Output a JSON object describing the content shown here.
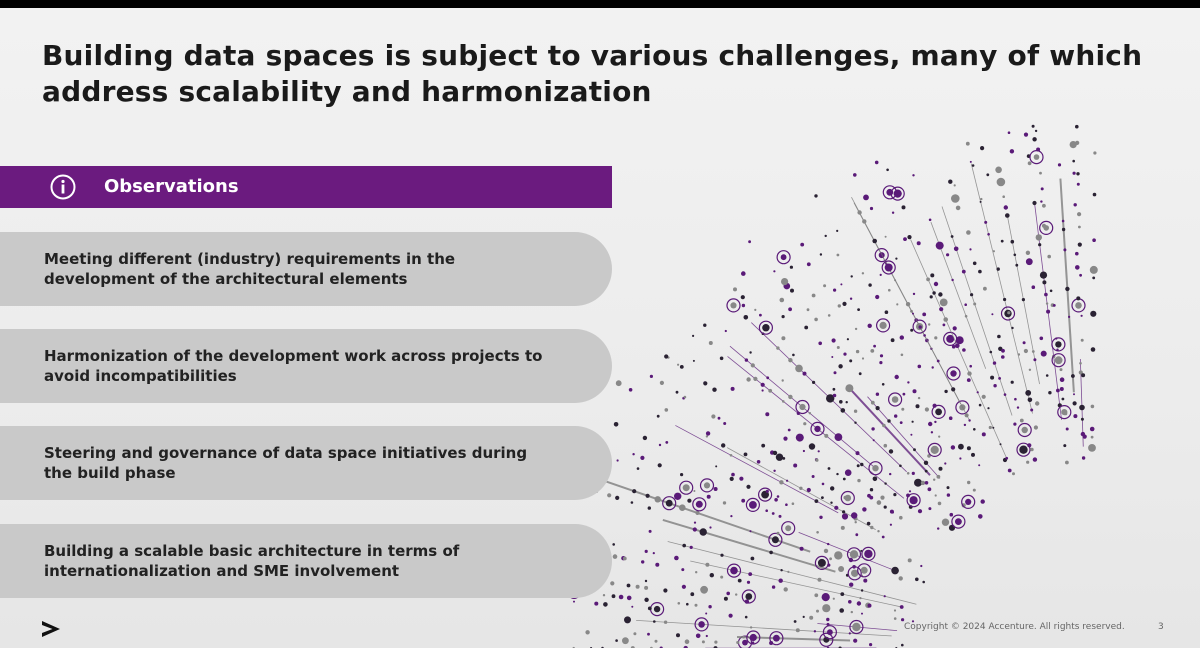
{
  "slide": {
    "title": "Building data spaces is subject to various challenges, many of which address scalability and harmonization",
    "observations": {
      "icon": "info-icon",
      "label": "Observations"
    },
    "items": [
      {
        "text": "Meeting different (industry) requirements in the development of the architectural elements"
      },
      {
        "text": "Harmonization of the development work across projects to avoid incompatibilities"
      },
      {
        "text": "Steering and governance of data space initiatives during the build phase"
      },
      {
        "text": "Building a scalable basic architecture in terms of internationalization and SME involvement"
      }
    ],
    "footer": {
      "logo": "accenture-chevron-logo",
      "copyright": "Copyright © 2024 Accenture. All rights reserved.",
      "page_number": "3"
    }
  },
  "colors": {
    "accent_purple": "#6b1b7f",
    "item_gray": "#c9c9c9",
    "background": "#eeeeee",
    "title_text": "#1a1a1a"
  }
}
